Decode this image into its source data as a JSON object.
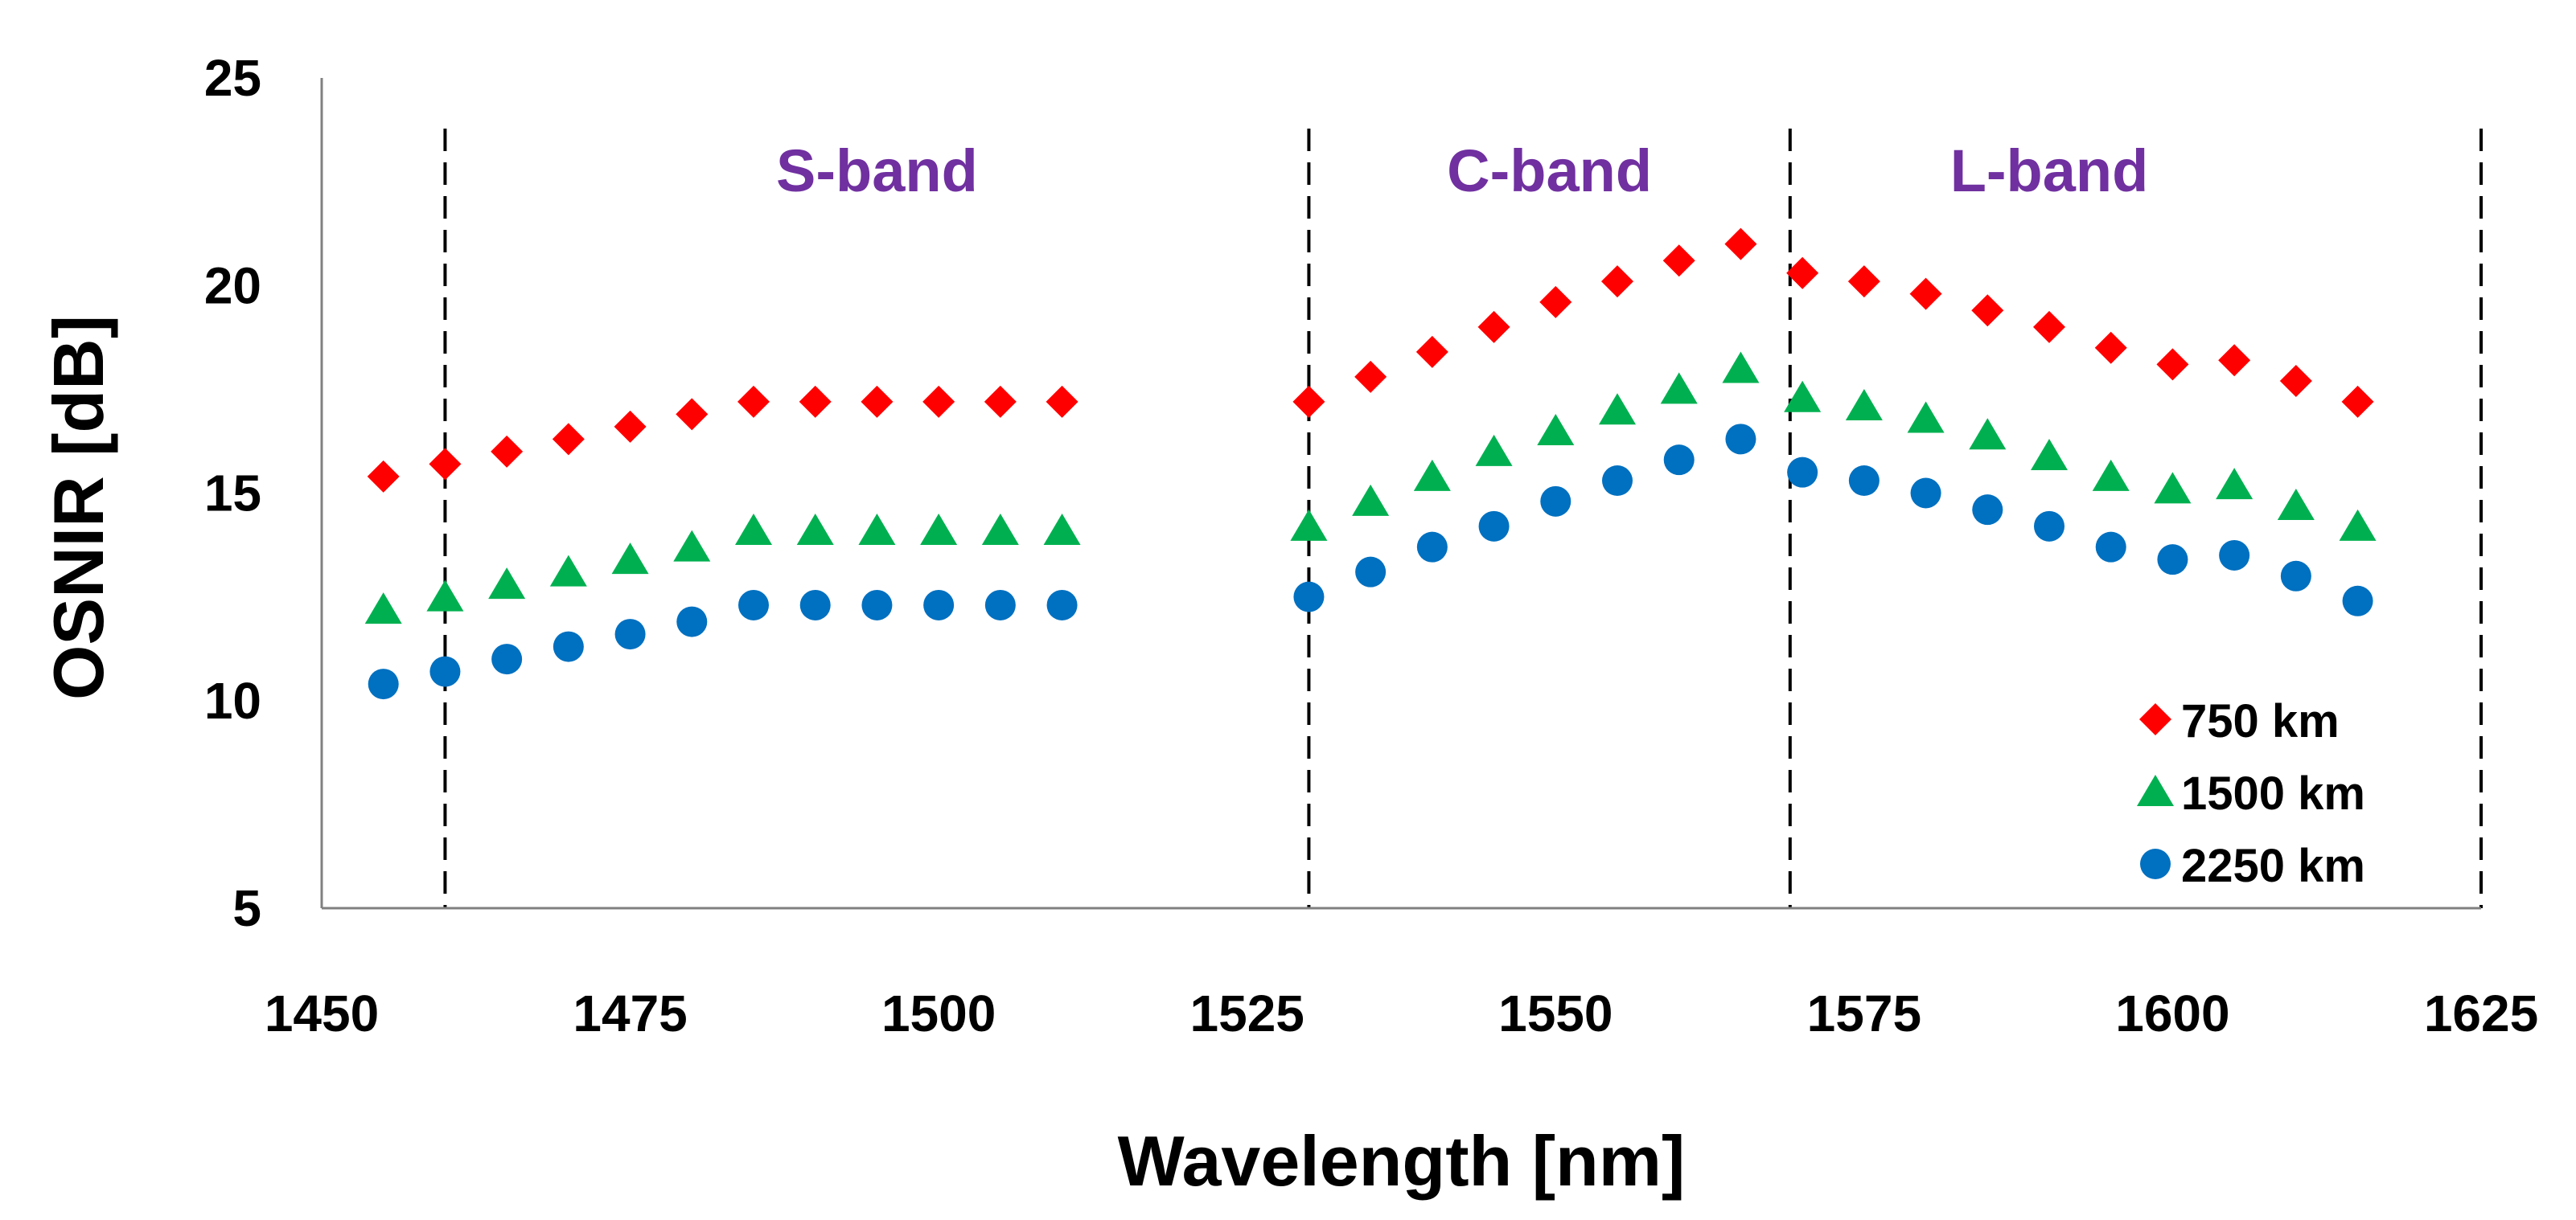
{
  "chart_data": {
    "type": "scatter",
    "title": "",
    "xlabel": "Wavelength [nm]",
    "ylabel": "OSNIR [dB]",
    "xlim": [
      1450,
      1625
    ],
    "ylim": [
      5,
      25
    ],
    "x_ticks": [
      1450,
      1475,
      1500,
      1525,
      1550,
      1575,
      1600,
      1625
    ],
    "y_ticks": [
      5,
      10,
      15,
      20,
      25
    ],
    "grid": false,
    "legend_position": "bottom-right",
    "band_boundaries": [
      1460,
      1530,
      1569,
      1625
    ],
    "bands": [
      {
        "label": "S-band",
        "x": 1495
      },
      {
        "label": "C-band",
        "x": 1549.5
      },
      {
        "label": "L-band",
        "x": 1590
      }
    ],
    "colors": {
      "band_label": "#7030A0",
      "boundary_line": "#000000",
      "axis": "#808080"
    },
    "series": [
      {
        "name": "750 km",
        "marker": "diamond",
        "color": "#FF0000",
        "points": [
          [
            1455,
            15.4
          ],
          [
            1460,
            15.7
          ],
          [
            1465,
            16.0
          ],
          [
            1470,
            16.3
          ],
          [
            1475,
            16.6
          ],
          [
            1480,
            16.9
          ],
          [
            1485,
            17.2
          ],
          [
            1490,
            17.2
          ],
          [
            1495,
            17.2
          ],
          [
            1500,
            17.2
          ],
          [
            1505,
            17.2
          ],
          [
            1510,
            17.2
          ],
          [
            1530,
            17.2
          ],
          [
            1535,
            17.8
          ],
          [
            1540,
            18.4
          ],
          [
            1545,
            19.0
          ],
          [
            1550,
            19.6
          ],
          [
            1555,
            20.1
          ],
          [
            1560,
            20.6
          ],
          [
            1565,
            21.0
          ],
          [
            1570,
            20.3
          ],
          [
            1575,
            20.1
          ],
          [
            1580,
            19.8
          ],
          [
            1585,
            19.4
          ],
          [
            1590,
            19.0
          ],
          [
            1595,
            18.5
          ],
          [
            1600,
            18.1
          ],
          [
            1605,
            18.2
          ],
          [
            1610,
            17.7
          ],
          [
            1615,
            17.2
          ]
        ]
      },
      {
        "name": "1500 km",
        "marker": "triangle",
        "color": "#00B050",
        "points": [
          [
            1455,
            12.2
          ],
          [
            1460,
            12.5
          ],
          [
            1465,
            12.8
          ],
          [
            1470,
            13.1
          ],
          [
            1475,
            13.4
          ],
          [
            1480,
            13.7
          ],
          [
            1485,
            14.1
          ],
          [
            1490,
            14.1
          ],
          [
            1495,
            14.1
          ],
          [
            1500,
            14.1
          ],
          [
            1505,
            14.1
          ],
          [
            1510,
            14.1
          ],
          [
            1530,
            14.2
          ],
          [
            1535,
            14.8
          ],
          [
            1540,
            15.4
          ],
          [
            1545,
            16.0
          ],
          [
            1550,
            16.5
          ],
          [
            1555,
            17.0
          ],
          [
            1560,
            17.5
          ],
          [
            1565,
            18.0
          ],
          [
            1570,
            17.3
          ],
          [
            1575,
            17.1
          ],
          [
            1580,
            16.8
          ],
          [
            1585,
            16.4
          ],
          [
            1590,
            15.9
          ],
          [
            1595,
            15.4
          ],
          [
            1600,
            15.1
          ],
          [
            1605,
            15.2
          ],
          [
            1610,
            14.7
          ],
          [
            1615,
            14.2
          ]
        ]
      },
      {
        "name": "2250 km",
        "marker": "circle",
        "color": "#0070C0",
        "points": [
          [
            1455,
            10.4
          ],
          [
            1460,
            10.7
          ],
          [
            1465,
            11.0
          ],
          [
            1470,
            11.3
          ],
          [
            1475,
            11.6
          ],
          [
            1480,
            11.9
          ],
          [
            1485,
            12.3
          ],
          [
            1490,
            12.3
          ],
          [
            1495,
            12.3
          ],
          [
            1500,
            12.3
          ],
          [
            1505,
            12.3
          ],
          [
            1510,
            12.3
          ],
          [
            1530,
            12.5
          ],
          [
            1535,
            13.1
          ],
          [
            1540,
            13.7
          ],
          [
            1545,
            14.2
          ],
          [
            1550,
            14.8
          ],
          [
            1555,
            15.3
          ],
          [
            1560,
            15.8
          ],
          [
            1565,
            16.3
          ],
          [
            1570,
            15.5
          ],
          [
            1575,
            15.3
          ],
          [
            1580,
            15.0
          ],
          [
            1585,
            14.6
          ],
          [
            1590,
            14.2
          ],
          [
            1595,
            13.7
          ],
          [
            1600,
            13.4
          ],
          [
            1605,
            13.5
          ],
          [
            1610,
            13.0
          ],
          [
            1615,
            12.4
          ]
        ]
      }
    ]
  }
}
